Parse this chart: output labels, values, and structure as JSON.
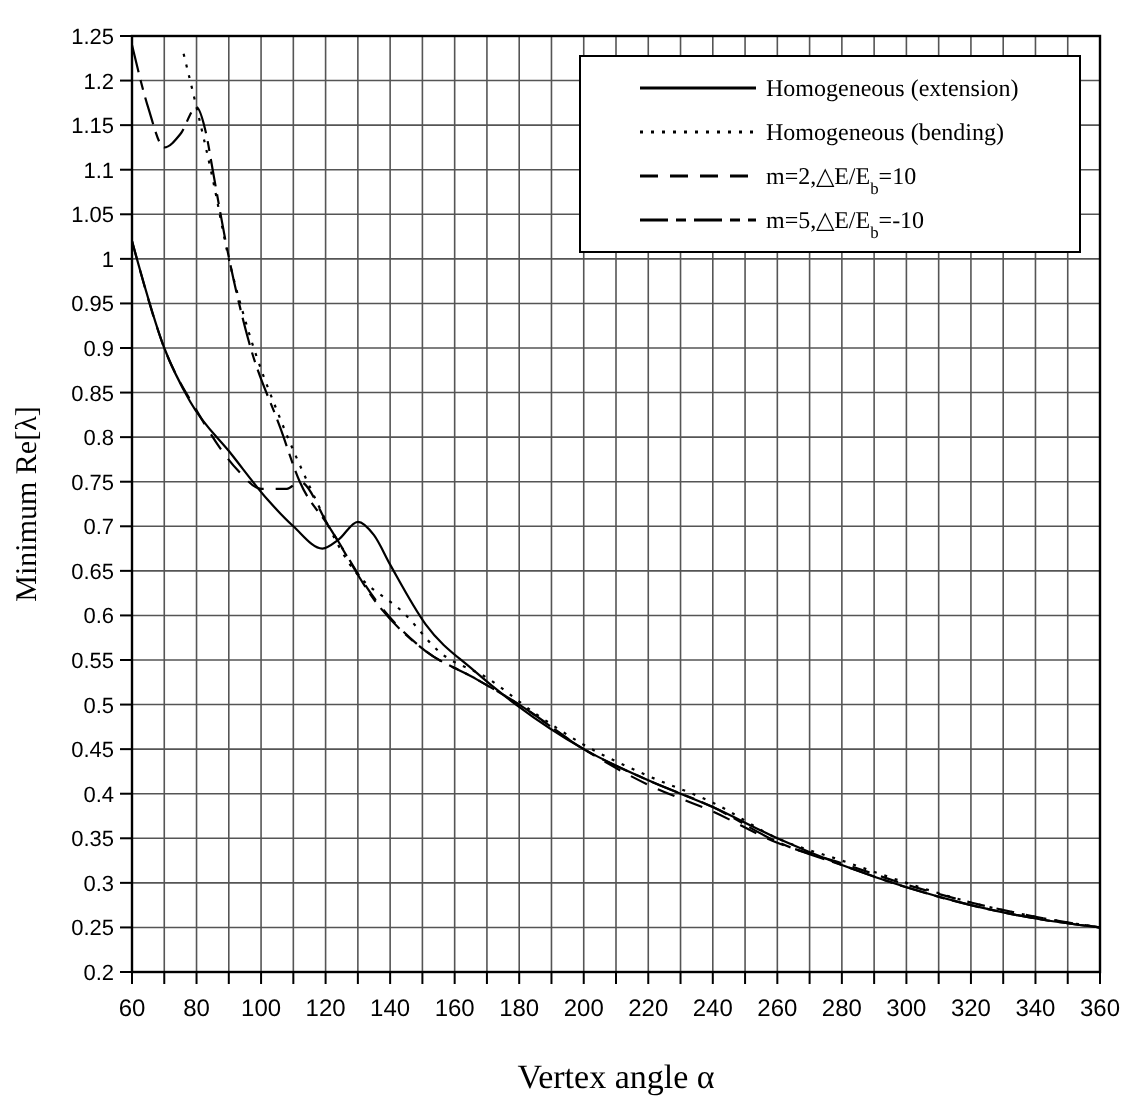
{
  "chart_data": {
    "type": "line",
    "xlabel": "Vertex angle α",
    "ylabel": "Minimum Re[λ]",
    "xlim": [
      60,
      360
    ],
    "ylim": [
      0.2,
      1.25
    ],
    "xticks": [
      60,
      {
        "value": 70,
        "label": null
      },
      80,
      {
        "value": 90,
        "label": null
      },
      100,
      {
        "value": 110,
        "label": null
      },
      120,
      {
        "value": 130,
        "label": null
      },
      140,
      {
        "value": 150,
        "label": null
      },
      160,
      {
        "value": 170,
        "label": null
      },
      180,
      {
        "value": 190,
        "label": null
      },
      200,
      {
        "value": 210,
        "label": null
      },
      220,
      {
        "value": 230,
        "label": null
      },
      240,
      {
        "value": 250,
        "label": null
      },
      260,
      {
        "value": 270,
        "label": null
      },
      280,
      {
        "value": 290,
        "label": null
      },
      300,
      {
        "value": 310,
        "label": null
      },
      320,
      {
        "value": 330,
        "label": null
      },
      340,
      {
        "value": 350,
        "label": null
      },
      360
    ],
    "yticks": [
      0.2,
      0.25,
      0.3,
      0.35,
      0.4,
      0.45,
      0.5,
      0.55,
      0.6,
      0.65,
      0.7,
      0.75,
      0.8,
      0.85,
      0.9,
      0.95,
      1,
      1.05,
      1.1,
      1.15,
      1.2,
      1.25
    ],
    "grid": true,
    "legend": "top right",
    "series": [
      {
        "name": "Homogeneous (extension)",
        "color": "#000000",
        "line_style": "solid",
        "x": [
          60,
          70,
          78,
          91,
          102,
          110,
          119,
          124,
          130,
          135,
          140,
          151,
          166,
          179,
          200,
          220,
          240,
          260,
          280,
          300,
          320,
          340,
          360
        ],
        "values": [
          1.02,
          0.9,
          0.84,
          0.78,
          0.73,
          0.7,
          0.675,
          0.685,
          0.705,
          0.69,
          0.657,
          0.59,
          0.538,
          0.5,
          0.45,
          0.415,
          0.385,
          0.35,
          0.32,
          0.295,
          0.275,
          0.26,
          0.25
        ]
      },
      {
        "name": "Homogeneous (bending)",
        "color": "#000000",
        "line_style": "dotted",
        "x": [
          76,
          80,
          85,
          90,
          96,
          106,
          115,
          127,
          145,
          155,
          170,
          185,
          200,
          220,
          240,
          260,
          280,
          300,
          320,
          340,
          360
        ],
        "values": [
          1.23,
          1.17,
          1.09,
          1.0,
          0.92,
          0.82,
          0.745,
          0.66,
          0.6,
          0.56,
          0.53,
          0.49,
          0.455,
          0.42,
          0.39,
          0.35,
          0.325,
          0.3,
          0.278,
          0.262,
          0.25
        ]
      },
      {
        "name": "m=2,△E/E$_{b}$=10",
        "color": "#000000",
        "line_style": "dashed",
        "x": [
          60,
          70,
          80,
          93,
          100,
          108,
          112,
          121,
          136,
          151,
          166,
          180,
          200,
          220,
          240,
          260,
          280,
          300,
          320,
          340,
          360
        ],
        "values": [
          1.02,
          0.9,
          0.83,
          0.762,
          0.742,
          0.742,
          0.75,
          0.7,
          0.615,
          0.56,
          0.53,
          0.5,
          0.45,
          0.41,
          0.38,
          0.345,
          0.322,
          0.298,
          0.278,
          0.262,
          0.25
        ]
      },
      {
        "name": "m=5,△E/E$_{b}$=-10",
        "color": "#000000",
        "line_style": "dashdot",
        "x": [
          60,
          65,
          70,
          75,
          80,
          83,
          85,
          89,
          96,
          106,
          112,
          121,
          136,
          151,
          166,
          180,
          200,
          220,
          240,
          260,
          280,
          300,
          320,
          340,
          360
        ],
        "values": [
          1.24,
          1.17,
          1.125,
          1.14,
          1.17,
          1.14,
          1.1,
          1.02,
          0.91,
          0.81,
          0.75,
          0.7,
          0.613,
          0.56,
          0.53,
          0.5,
          0.45,
          0.415,
          0.385,
          0.346,
          0.32,
          0.295,
          0.275,
          0.26,
          0.25
        ]
      }
    ]
  }
}
